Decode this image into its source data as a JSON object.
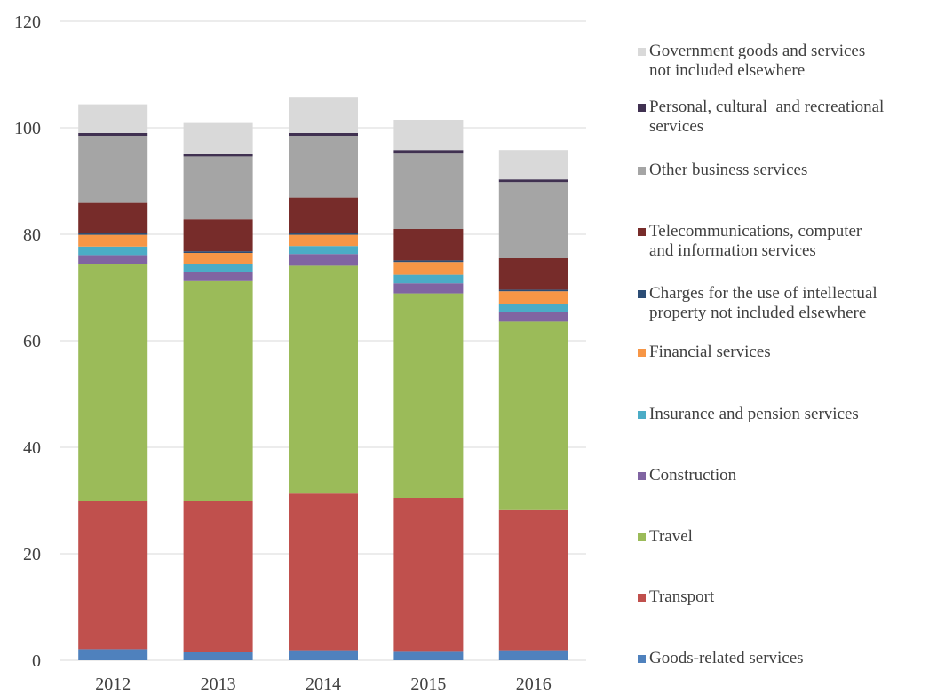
{
  "chart_data": {
    "type": "bar",
    "stacked": true,
    "title": "",
    "xlabel": "",
    "ylabel": "",
    "categories": [
      "2012",
      "2013",
      "2014",
      "2015",
      "2016"
    ],
    "ylim": [
      0,
      120
    ],
    "yticks": [
      0,
      20,
      40,
      60,
      80,
      100,
      120
    ],
    "ytick_labels": [
      "0",
      "20",
      "40",
      "60",
      "80",
      "100",
      "120"
    ],
    "grid": true,
    "legend_position": "right",
    "series": [
      {
        "name": "Goods-related services",
        "color": "#4F81BD",
        "values": [
          2.1,
          1.5,
          1.9,
          1.6,
          1.9
        ]
      },
      {
        "name": "Transport",
        "color": "#C0504D",
        "values": [
          27.9,
          28.5,
          29.4,
          28.9,
          26.3
        ]
      },
      {
        "name": "Travel",
        "color": "#9BBB59",
        "values": [
          44.5,
          41.2,
          42.8,
          38.4,
          35.4
        ]
      },
      {
        "name": "Construction",
        "color": "#8064A2",
        "values": [
          1.6,
          1.7,
          2.2,
          1.9,
          1.8
        ]
      },
      {
        "name": "Insurance and pension services",
        "color": "#4BACC6",
        "values": [
          1.6,
          1.5,
          1.5,
          1.6,
          1.6
        ]
      },
      {
        "name": "Financial services",
        "color": "#F79646",
        "values": [
          2.2,
          2.1,
          2.1,
          2.4,
          2.3
        ]
      },
      {
        "name": "Charges for the use of intellectual\nproperty not included elsewhere",
        "color": "#2C4D75",
        "values": [
          0.4,
          0.3,
          0.4,
          0.3,
          0.3
        ]
      },
      {
        "name": "Telecommunications, computer\nand information services",
        "color": "#772C2A",
        "values": [
          5.6,
          6.0,
          6.6,
          5.9,
          5.9
        ]
      },
      {
        "name": "Other business services",
        "color": "#A5A5A5",
        "values": [
          12.6,
          11.8,
          11.6,
          14.3,
          14.3
        ]
      },
      {
        "name": "Personal, cultural  and recreational\nservices",
        "color": "#403151",
        "values": [
          0.5,
          0.5,
          0.5,
          0.5,
          0.5
        ]
      },
      {
        "name": "Government goods and services\nnot included elsewhere",
        "color": "#D9D9D9",
        "values": [
          5.4,
          5.8,
          6.8,
          5.7,
          5.5
        ]
      }
    ]
  }
}
